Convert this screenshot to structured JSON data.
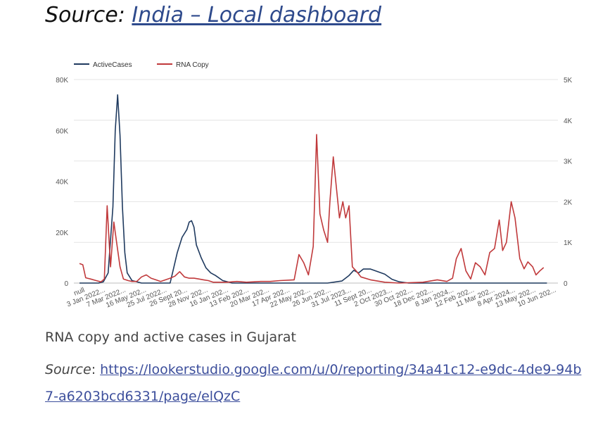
{
  "heading": {
    "prefix": "Source:",
    "link_text": "India – Local dashboard"
  },
  "caption": {
    "text": "RNA copy and active cases in Gujarat",
    "source_label": "Source",
    "source_sep": ": ",
    "source_url": "https://lookerstudio.google.com/u/0/reporting/34a41c12-e9dc-4de9-94b7-a6203bcd6331/page/elQzC"
  },
  "colors": {
    "active": "#1f3a5f",
    "rna": "#c0393b",
    "grid": "#e4e4e4",
    "tick": "#555555"
  },
  "chart_data": {
    "type": "line",
    "legend_position": "top-left",
    "grid": true,
    "x_tick_labels": [
      "null",
      "3 Jan 2022...",
      "7 Mar 2022...",
      "16 May 202...",
      "25 Jul 2022...",
      "26 Sept 20...",
      "28 Nov 202...",
      "16 Jan 202...",
      "13 Feb 202...",
      "20 Mar 202...",
      "17 Apr 202...",
      "22 May 202...",
      "26 Jun 202...",
      "31 Jul 2023...",
      "11 Sept 20...",
      "2 Oct 2023...",
      "30 Oct 202...",
      "18 Dec 202...",
      "8 Jan 2024...",
      "12 Feb 202...",
      "11 Mar 202...",
      "8 Apr 2024...",
      "13 May 202...",
      "10 Jun 202..."
    ],
    "x_range": [
      0,
      100
    ],
    "y_left": {
      "ticks": [
        "0",
        "20K",
        "40K",
        "60K",
        "80K"
      ],
      "range": [
        0,
        80000
      ]
    },
    "y_right": {
      "ticks": [
        "0",
        "1K",
        "2K",
        "3K",
        "4K",
        "5K"
      ],
      "range": [
        0,
        5000
      ]
    },
    "series": [
      {
        "name": "ActiveCases",
        "axis": "left",
        "points": [
          [
            0,
            0
          ],
          [
            2,
            0
          ],
          [
            4,
            0
          ],
          [
            5,
            500
          ],
          [
            6,
            4000
          ],
          [
            7,
            30000
          ],
          [
            7.5,
            60000
          ],
          [
            8,
            74000
          ],
          [
            8.5,
            58000
          ],
          [
            9,
            30000
          ],
          [
            9.5,
            12000
          ],
          [
            10,
            4000
          ],
          [
            11,
            1000
          ],
          [
            13,
            0
          ],
          [
            19,
            0
          ],
          [
            19.5,
            4000
          ],
          [
            20.5,
            12000
          ],
          [
            21.5,
            18000
          ],
          [
            22.5,
            21000
          ],
          [
            23,
            24000
          ],
          [
            23.5,
            24500
          ],
          [
            24,
            22000
          ],
          [
            24.5,
            15000
          ],
          [
            25.5,
            10000
          ],
          [
            26.5,
            6000
          ],
          [
            27.5,
            4000
          ],
          [
            28.5,
            3000
          ],
          [
            30,
            1000
          ],
          [
            32,
            0
          ],
          [
            52,
            0
          ],
          [
            55,
            800
          ],
          [
            56.5,
            3000
          ],
          [
            57.5,
            5000
          ],
          [
            58.5,
            4000
          ],
          [
            59.5,
            5500
          ],
          [
            61,
            5500
          ],
          [
            62.5,
            4500
          ],
          [
            64,
            3500
          ],
          [
            65.5,
            1500
          ],
          [
            67,
            500
          ],
          [
            69,
            0
          ],
          [
            98,
            0
          ]
        ]
      },
      {
        "name": "RNA Copy",
        "axis": "right",
        "points": [
          [
            0,
            480
          ],
          [
            0.7,
            450
          ],
          [
            1.3,
            130
          ],
          [
            2.3,
            100
          ],
          [
            3.5,
            60
          ],
          [
            4.5,
            30
          ],
          [
            5.2,
            100
          ],
          [
            5.8,
            1900
          ],
          [
            6.5,
            400
          ],
          [
            7.2,
            1500
          ],
          [
            7.8,
            980
          ],
          [
            8.5,
            400
          ],
          [
            9.2,
            100
          ],
          [
            10.2,
            60
          ],
          [
            11,
            40
          ],
          [
            12,
            40
          ],
          [
            13,
            150
          ],
          [
            14,
            200
          ],
          [
            15,
            120
          ],
          [
            16,
            80
          ],
          [
            17,
            40
          ],
          [
            19,
            120
          ],
          [
            20,
            170
          ],
          [
            21,
            280
          ],
          [
            22,
            150
          ],
          [
            23,
            120
          ],
          [
            24,
            120
          ],
          [
            25,
            100
          ],
          [
            26,
            80
          ],
          [
            27,
            60
          ],
          [
            28,
            20
          ],
          [
            31,
            20
          ],
          [
            33,
            40
          ],
          [
            35,
            20
          ],
          [
            38,
            40
          ],
          [
            40,
            40
          ],
          [
            42,
            60
          ],
          [
            45,
            80
          ],
          [
            46,
            700
          ],
          [
            47,
            500
          ],
          [
            48,
            200
          ],
          [
            49,
            900
          ],
          [
            49.7,
            3650
          ],
          [
            50.4,
            1700
          ],
          [
            51.2,
            1300
          ],
          [
            52,
            1000
          ],
          [
            52.5,
            2000
          ],
          [
            53.2,
            3100
          ],
          [
            53.8,
            2400
          ],
          [
            54.5,
            1600
          ],
          [
            55.2,
            2000
          ],
          [
            55.8,
            1600
          ],
          [
            56.5,
            1900
          ],
          [
            57.2,
            400
          ],
          [
            58,
            300
          ],
          [
            59,
            150
          ],
          [
            61,
            80
          ],
          [
            64,
            20
          ],
          [
            67,
            0
          ],
          [
            72,
            20
          ],
          [
            75,
            80
          ],
          [
            77,
            40
          ],
          [
            78.2,
            120
          ],
          [
            79,
            600
          ],
          [
            80,
            850
          ],
          [
            81,
            300
          ],
          [
            82,
            100
          ],
          [
            83,
            500
          ],
          [
            84,
            400
          ],
          [
            85,
            200
          ],
          [
            86,
            750
          ],
          [
            87,
            850
          ],
          [
            88,
            1550
          ],
          [
            88.7,
            800
          ],
          [
            89.5,
            1000
          ],
          [
            90.5,
            2000
          ],
          [
            91.3,
            1600
          ],
          [
            92.3,
            600
          ],
          [
            93.2,
            350
          ],
          [
            94,
            520
          ],
          [
            95,
            400
          ],
          [
            95.7,
            200
          ],
          [
            96.5,
            300
          ],
          [
            97.3,
            380
          ]
        ]
      }
    ]
  }
}
